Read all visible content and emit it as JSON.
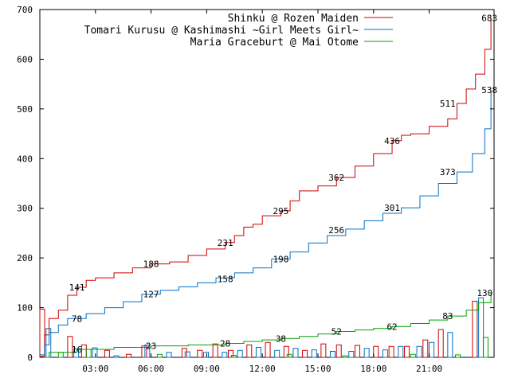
{
  "chart_data": {
    "type": "line",
    "ylim": [
      0,
      700
    ],
    "yticks": [
      0,
      100,
      200,
      300,
      400,
      500,
      600,
      700
    ],
    "xlim": [
      0,
      1470
    ],
    "xticks": [
      {
        "minutes": 180,
        "label": "03:00"
      },
      {
        "minutes": 360,
        "label": "06:00"
      },
      {
        "minutes": 540,
        "label": "09:00"
      },
      {
        "minutes": 720,
        "label": "12:00"
      },
      {
        "minutes": 900,
        "label": "15:00"
      },
      {
        "minutes": 1080,
        "label": "18:00"
      },
      {
        "minutes": 1260,
        "label": "21:00"
      }
    ],
    "grid": false,
    "legend_position": "top-right",
    "series": [
      {
        "name": "Shinku @ Rozen Maiden",
        "color": "#cc0000",
        "points": [
          [
            0,
            2
          ],
          [
            15,
            45
          ],
          [
            30,
            78
          ],
          [
            60,
            95
          ],
          [
            90,
            125
          ],
          [
            120,
            141
          ],
          [
            150,
            155
          ],
          [
            180,
            160
          ],
          [
            240,
            170
          ],
          [
            300,
            180
          ],
          [
            360,
            188
          ],
          [
            420,
            192
          ],
          [
            480,
            205
          ],
          [
            540,
            218
          ],
          [
            600,
            231
          ],
          [
            630,
            245
          ],
          [
            660,
            262
          ],
          [
            690,
            268
          ],
          [
            720,
            285
          ],
          [
            780,
            295
          ],
          [
            810,
            315
          ],
          [
            840,
            335
          ],
          [
            900,
            345
          ],
          [
            960,
            362
          ],
          [
            1020,
            385
          ],
          [
            1080,
            410
          ],
          [
            1140,
            436
          ],
          [
            1170,
            447
          ],
          [
            1200,
            450
          ],
          [
            1260,
            465
          ],
          [
            1320,
            480
          ],
          [
            1350,
            511
          ],
          [
            1380,
            540
          ],
          [
            1410,
            570
          ],
          [
            1440,
            620
          ],
          [
            1460,
            683
          ]
        ],
        "bars": [
          [
            0,
            97
          ],
          [
            90,
            42
          ],
          [
            135,
            25
          ],
          [
            210,
            14
          ],
          [
            280,
            6
          ],
          [
            330,
            23
          ],
          [
            460,
            18
          ],
          [
            510,
            14
          ],
          [
            560,
            27
          ],
          [
            610,
            14
          ],
          [
            670,
            25
          ],
          [
            730,
            30
          ],
          [
            790,
            22
          ],
          [
            850,
            14
          ],
          [
            910,
            27
          ],
          [
            960,
            25
          ],
          [
            1020,
            24
          ],
          [
            1080,
            22
          ],
          [
            1130,
            22
          ],
          [
            1180,
            22
          ],
          [
            1240,
            35
          ],
          [
            1290,
            56
          ],
          [
            1400,
            113
          ]
        ],
        "labels": [
          {
            "x": 120,
            "y": 141,
            "text": "141"
          },
          {
            "x": 360,
            "y": 188,
            "text": "188"
          },
          {
            "x": 600,
            "y": 231,
            "text": "231"
          },
          {
            "x": 780,
            "y": 295,
            "text": "295"
          },
          {
            "x": 960,
            "y": 362,
            "text": "362"
          },
          {
            "x": 1140,
            "y": 436,
            "text": "436"
          },
          {
            "x": 1320,
            "y": 511,
            "text": "511"
          },
          {
            "x": 1455,
            "y": 683,
            "text": "683"
          }
        ]
      },
      {
        "name": "Tomari Kurusu @ Kashimashi ~Girl Meets Girl~",
        "color": "#0070c8",
        "points": [
          [
            0,
            5
          ],
          [
            15,
            25
          ],
          [
            30,
            50
          ],
          [
            60,
            65
          ],
          [
            90,
            78
          ],
          [
            150,
            88
          ],
          [
            210,
            100
          ],
          [
            270,
            112
          ],
          [
            330,
            127
          ],
          [
            390,
            135
          ],
          [
            450,
            142
          ],
          [
            510,
            150
          ],
          [
            570,
            160
          ],
          [
            630,
            170
          ],
          [
            690,
            180
          ],
          [
            750,
            198
          ],
          [
            810,
            212
          ],
          [
            870,
            230
          ],
          [
            930,
            245
          ],
          [
            990,
            258
          ],
          [
            1050,
            275
          ],
          [
            1110,
            290
          ],
          [
            1170,
            301
          ],
          [
            1230,
            325
          ],
          [
            1290,
            350
          ],
          [
            1350,
            373
          ],
          [
            1400,
            410
          ],
          [
            1440,
            460
          ],
          [
            1460,
            538
          ]
        ],
        "bars": [
          [
            20,
            58
          ],
          [
            110,
            17
          ],
          [
            170,
            19
          ],
          [
            240,
            3
          ],
          [
            340,
            25
          ],
          [
            410,
            10
          ],
          [
            470,
            11
          ],
          [
            530,
            10
          ],
          [
            590,
            10
          ],
          [
            640,
            14
          ],
          [
            700,
            20
          ],
          [
            760,
            14
          ],
          [
            820,
            18
          ],
          [
            880,
            15
          ],
          [
            940,
            12
          ],
          [
            1000,
            12
          ],
          [
            1050,
            18
          ],
          [
            1110,
            15
          ],
          [
            1160,
            22
          ],
          [
            1220,
            22
          ],
          [
            1260,
            30
          ],
          [
            1320,
            50
          ],
          [
            1420,
            120
          ]
        ],
        "labels": [
          {
            "x": 120,
            "y": 78,
            "text": "78"
          },
          {
            "x": 360,
            "y": 127,
            "text": "127"
          },
          {
            "x": 600,
            "y": 158,
            "text": "158"
          },
          {
            "x": 780,
            "y": 198,
            "text": "198"
          },
          {
            "x": 960,
            "y": 256,
            "text": "256"
          },
          {
            "x": 1140,
            "y": 301,
            "text": "301"
          },
          {
            "x": 1320,
            "y": 373,
            "text": "373"
          },
          {
            "x": 1455,
            "y": 538,
            "text": "538"
          }
        ]
      },
      {
        "name": "Maria Graceburt @ Mai Otome",
        "color": "#00a000",
        "points": [
          [
            0,
            0
          ],
          [
            30,
            10
          ],
          [
            120,
            16
          ],
          [
            240,
            20
          ],
          [
            360,
            23
          ],
          [
            480,
            25
          ],
          [
            600,
            28
          ],
          [
            660,
            32
          ],
          [
            720,
            35
          ],
          [
            780,
            38
          ],
          [
            840,
            42
          ],
          [
            900,
            47
          ],
          [
            960,
            52
          ],
          [
            1020,
            55
          ],
          [
            1080,
            58
          ],
          [
            1140,
            62
          ],
          [
            1200,
            68
          ],
          [
            1260,
            75
          ],
          [
            1320,
            83
          ],
          [
            1380,
            95
          ],
          [
            1420,
            110
          ],
          [
            1460,
            130
          ]
        ],
        "bars": [
          [
            60,
            10
          ],
          [
            150,
            16
          ],
          [
            380,
            6
          ],
          [
            620,
            4
          ],
          [
            800,
            6
          ],
          [
            980,
            3
          ],
          [
            1200,
            6
          ],
          [
            1345,
            5
          ],
          [
            1435,
            40
          ]
        ],
        "labels": [
          {
            "x": 120,
            "y": 16,
            "text": "16"
          },
          {
            "x": 360,
            "y": 23,
            "text": "23"
          },
          {
            "x": 600,
            "y": 28,
            "text": "28"
          },
          {
            "x": 780,
            "y": 38,
            "text": "38"
          },
          {
            "x": 960,
            "y": 52,
            "text": "52"
          },
          {
            "x": 1140,
            "y": 62,
            "text": "62"
          },
          {
            "x": 1320,
            "y": 83,
            "text": "83"
          },
          {
            "x": 1440,
            "y": 130,
            "text": "130"
          }
        ]
      }
    ]
  }
}
